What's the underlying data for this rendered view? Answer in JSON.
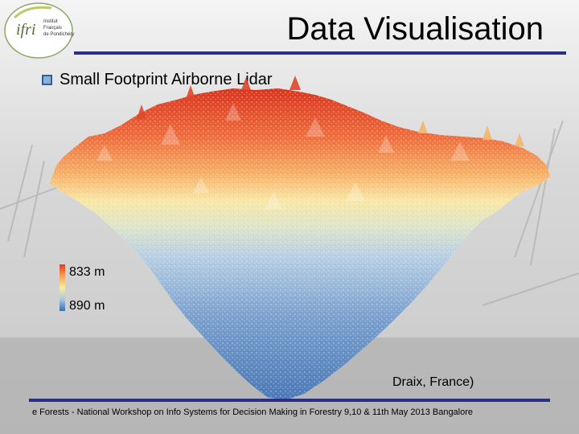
{
  "slide": {
    "title": "Data Visualisation",
    "bullet": "Small Footprint Airborne Lidar",
    "legend": {
      "top_label": "833 m",
      "bottom_label": "890 m"
    },
    "location": "Draix, France)",
    "footer": "e Forests - National Workshop on Info Systems for Decision Making in Forestry 9,10 & 11th May 2013 Bangalore"
  },
  "logo": {
    "text": "ifri",
    "lines": [
      "Institut",
      "Français",
      "de Pondichéry"
    ]
  },
  "colors": {
    "accent": "#2b2f86",
    "hot": "#e03a20",
    "cool": "#3a6fb0"
  }
}
